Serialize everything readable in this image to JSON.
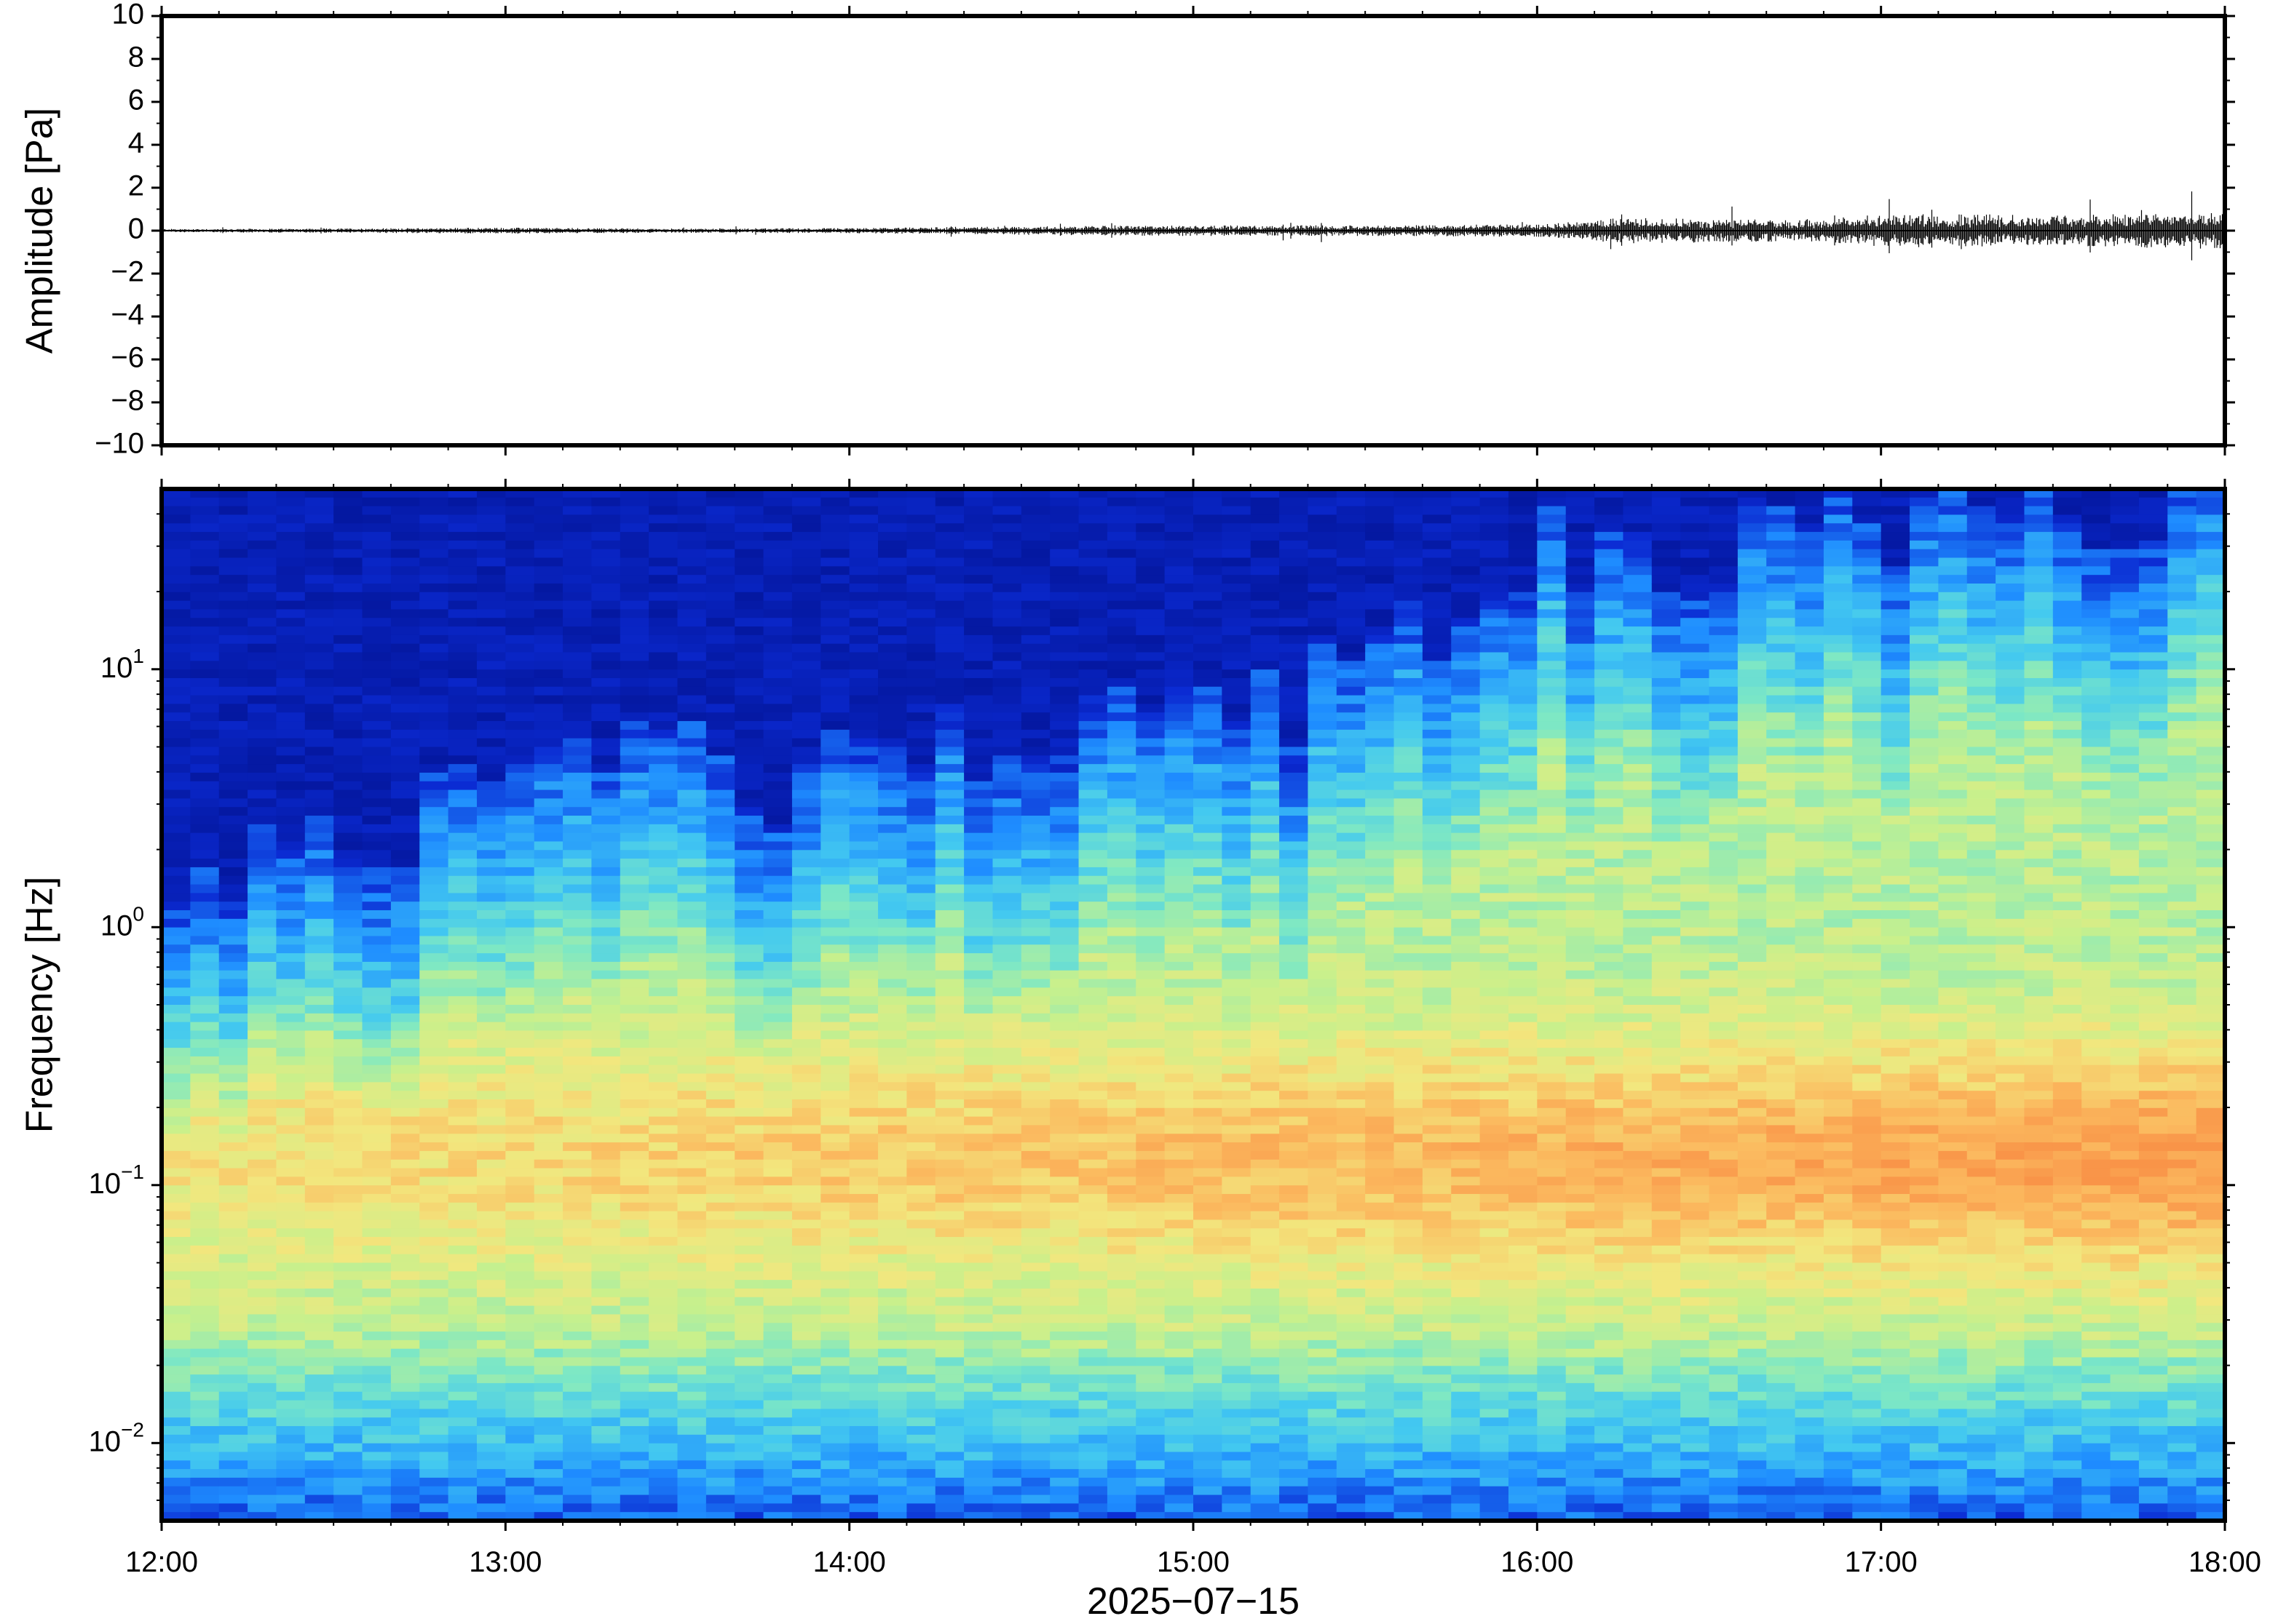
{
  "chart_data": [
    {
      "type": "line",
      "panel": "waveform",
      "ylabel": "Amplitude [Pa]",
      "ylim": [
        -10,
        10
      ],
      "yticks": [
        10,
        8,
        6,
        4,
        2,
        0,
        -2,
        -4,
        -6,
        -8,
        -10
      ],
      "ytick_labels": [
        "10",
        "8",
        "6",
        "4",
        "2",
        "0",
        "−2",
        "−4",
        "−6",
        "−8",
        "−10"
      ],
      "x_hours": [
        12,
        12.5,
        13,
        13.5,
        14,
        14.5,
        15,
        15.5,
        16,
        16.25,
        16.5,
        16.75,
        17,
        17.25,
        17.5,
        17.75,
        18
      ],
      "envelope_pa": [
        0.08,
        0.1,
        0.14,
        0.1,
        0.12,
        0.2,
        0.25,
        0.25,
        0.3,
        0.6,
        0.55,
        0.5,
        0.75,
        0.8,
        0.7,
        0.8,
        0.85
      ],
      "grid": false
    },
    {
      "type": "heatmap",
      "panel": "spectrogram",
      "ylabel": "Frequency [Hz]",
      "yscale": "log",
      "ylim": [
        0.005,
        50
      ],
      "yticks": [
        0.01,
        0.1,
        1,
        10
      ],
      "ytick_labels": [
        {
          "base": "10",
          "exp": "−2"
        },
        {
          "base": "10",
          "exp": "−1"
        },
        {
          "base": "10",
          "exp": "0"
        },
        {
          "base": "10",
          "exp": "1"
        }
      ],
      "colormap": [
        "#000c80",
        "#0b2ad2",
        "#1e8cff",
        "#43c9f0",
        "#7ee8c4",
        "#c8f08c",
        "#f2e77e",
        "#fbba5f",
        "#f99448"
      ],
      "x_hours": [
        12,
        12.5,
        13,
        13.5,
        14,
        14.5,
        15,
        15.5,
        16,
        16.5,
        17,
        17.5,
        18
      ],
      "noise_boundary_log10_hz": [
        0.3,
        0.3,
        0.55,
        0.6,
        0.55,
        0.7,
        0.85,
        0.95,
        1.45,
        1.5,
        1.6,
        1.65,
        1.65
      ],
      "grid": false
    }
  ],
  "x_axis": {
    "tick_labels": [
      "12:00",
      "13:00",
      "14:00",
      "15:00",
      "16:00",
      "17:00",
      "18:00"
    ],
    "date_label": "2025−07−15"
  }
}
